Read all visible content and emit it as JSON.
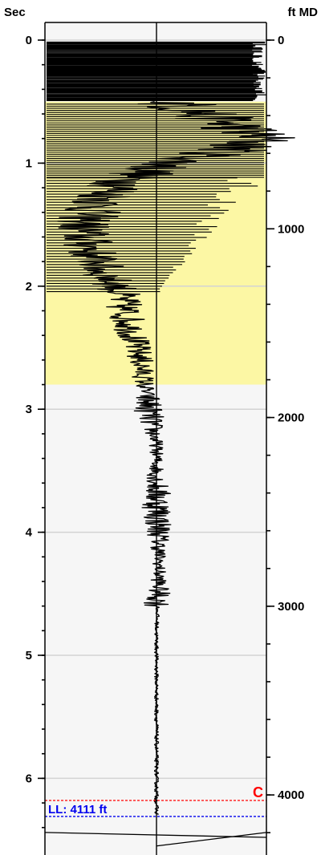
{
  "chart_data": {
    "type": "line",
    "left_axis": {
      "label": "Sec",
      "ticks": [
        "0",
        "1",
        "2",
        "3",
        "4",
        "5",
        "6"
      ],
      "range": [
        0,
        6.55
      ],
      "minor_step": 0.2
    },
    "right_axis": {
      "label": "ft MD",
      "ticks": [
        "0",
        "1000",
        "2000",
        "3000",
        "4000"
      ],
      "tick_values": [
        0,
        1000,
        2000,
        3000,
        4000
      ],
      "scale_ft_per_sec": 652,
      "minor_step": 200
    },
    "grid": true,
    "shaded_interval_sec": [
      0.5,
      2.8
    ],
    "shaded_color": "#fcf7a4",
    "background_color": "#f6f6f6",
    "annotations": [
      {
        "text": "C",
        "y_sec": 6.18,
        "color": "#ff0000",
        "style": "dashed",
        "align": "right"
      },
      {
        "text": "LL: 4111 ft",
        "y_sec": 6.31,
        "color": "#0000ee",
        "style": "dashed",
        "align": "left"
      }
    ],
    "series": [
      {
        "points": [
          [
            0.0,
            0.1
          ],
          [
            0.5,
            0.1
          ],
          [
            0.6,
            0.35
          ],
          [
            0.7,
            0.6
          ],
          [
            0.8,
            0.8
          ],
          [
            0.9,
            0.55
          ],
          [
            1.0,
            0.1
          ],
          [
            1.1,
            -0.15
          ],
          [
            1.2,
            -0.3
          ],
          [
            1.3,
            -0.4
          ],
          [
            1.4,
            -0.5
          ],
          [
            1.5,
            -0.55
          ],
          [
            1.6,
            -0.55
          ],
          [
            1.7,
            -0.5
          ],
          [
            1.8,
            -0.45
          ],
          [
            1.9,
            -0.4
          ],
          [
            2.0,
            -0.3
          ],
          [
            2.2,
            -0.24
          ],
          [
            2.4,
            -0.18
          ],
          [
            2.6,
            -0.12
          ],
          [
            2.8,
            -0.09
          ],
          [
            3.0,
            -0.06
          ],
          [
            3.3,
            0.0
          ],
          [
            3.6,
            0.0
          ],
          [
            4.0,
            0.02
          ],
          [
            4.4,
            0.02
          ],
          [
            4.8,
            0.0
          ],
          [
            5.2,
            0.0
          ],
          [
            5.8,
            0.0
          ],
          [
            6.2,
            0.0
          ],
          [
            6.55,
            0.0
          ]
        ]
      }
    ]
  }
}
